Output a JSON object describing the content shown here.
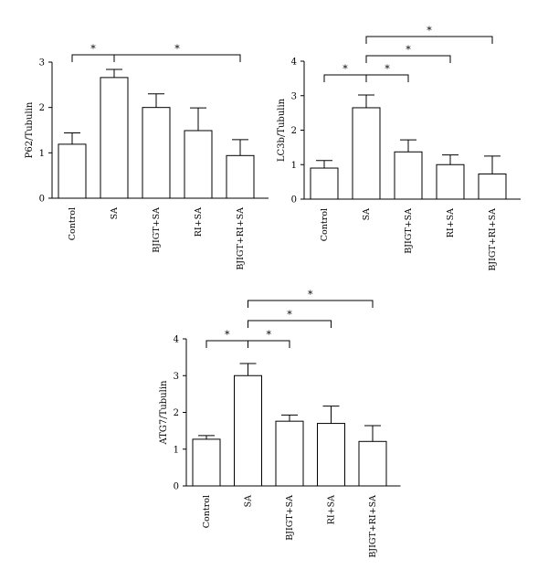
{
  "chart_data": [
    {
      "type": "bar",
      "ylabel": "P62/Tubulin",
      "categories": [
        "Control",
        "SA",
        "BJIGT+SA",
        "RI+SA",
        "BJIGT+RI+SA"
      ],
      "values": [
        1.19,
        2.66,
        2.0,
        1.49,
        0.94
      ],
      "errors": [
        0.25,
        0.18,
        0.3,
        0.5,
        0.35
      ],
      "ylim": [
        0,
        3
      ],
      "yticks": [
        0,
        1,
        2,
        3
      ],
      "significance": [
        {
          "from": 0,
          "to": 1,
          "label": "*",
          "level": 1
        },
        {
          "from": 1,
          "to": 4,
          "label": "*",
          "level": 1
        }
      ]
    },
    {
      "type": "bar",
      "ylabel": "LC3b/Tubulin",
      "categories": [
        "Control",
        "SA",
        "BJIGT+SA",
        "RI+SA",
        "BJIGT+RI+SA"
      ],
      "values": [
        0.9,
        2.65,
        1.37,
        1.0,
        0.73
      ],
      "errors": [
        0.22,
        0.37,
        0.35,
        0.28,
        0.52
      ],
      "ylim": [
        0,
        4
      ],
      "yticks": [
        0,
        1,
        2,
        3,
        4
      ],
      "significance": [
        {
          "from": 0,
          "to": 1,
          "label": "*",
          "level": 1
        },
        {
          "from": 1,
          "to": 2,
          "label": "*",
          "level": 1
        },
        {
          "from": 1,
          "to": 3,
          "label": "*",
          "level": 2
        },
        {
          "from": 1,
          "to": 4,
          "label": "*",
          "level": 3
        }
      ]
    },
    {
      "type": "bar",
      "ylabel": "ATG7/Tubulin",
      "categories": [
        "Control",
        "SA",
        "BJIGT+SA",
        "RI+SA",
        "BJIGT+RI+SA"
      ],
      "values": [
        1.27,
        3.0,
        1.76,
        1.7,
        1.21
      ],
      "errors": [
        0.1,
        0.33,
        0.17,
        0.47,
        0.43
      ],
      "ylim": [
        0,
        4
      ],
      "yticks": [
        0,
        1,
        2,
        3,
        4
      ],
      "significance": [
        {
          "from": 0,
          "to": 1,
          "label": "*",
          "level": 1
        },
        {
          "from": 1,
          "to": 2,
          "label": "*",
          "level": 1
        },
        {
          "from": 1,
          "to": 3,
          "label": "*",
          "level": 2
        },
        {
          "from": 1,
          "to": 4,
          "label": "*",
          "level": 3
        }
      ]
    }
  ]
}
